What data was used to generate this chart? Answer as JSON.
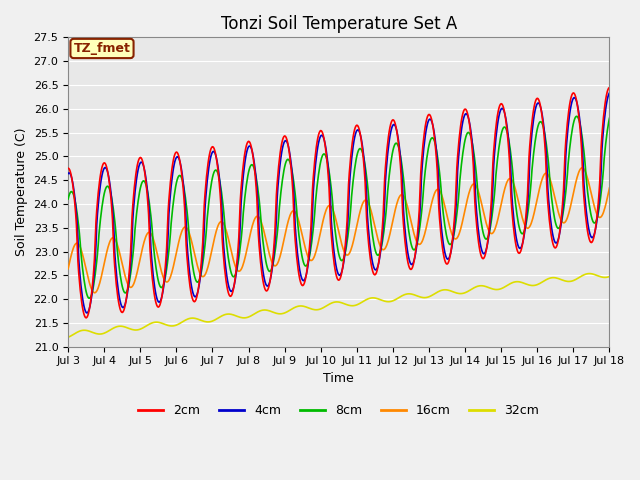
{
  "title": "Tonzi Soil Temperature Set A",
  "xlabel": "Time",
  "ylabel": "Soil Temperature (C)",
  "ylim": [
    21.0,
    27.5
  ],
  "yticks": [
    21.0,
    21.5,
    22.0,
    22.5,
    23.0,
    23.5,
    24.0,
    24.5,
    25.0,
    25.5,
    26.0,
    26.5,
    27.0,
    27.5
  ],
  "xtick_labels": [
    "Jul 3",
    "Jul 4",
    "Jul 5",
    "Jul 6",
    "Jul 7",
    "Jul 8",
    "Jul 9",
    "Jul 10",
    "Jul 11",
    "Jul 12",
    "Jul 13",
    "Jul 14",
    "Jul 15",
    "Jul 16",
    "Jul 17",
    "Jul 18"
  ],
  "colors": {
    "2cm": "#ff0000",
    "4cm": "#0000cc",
    "8cm": "#00bb00",
    "16cm": "#ff8800",
    "32cm": "#dddd00"
  },
  "annotation_text": "TZ_fmet",
  "annotation_facecolor": "#ffffbb",
  "annotation_edgecolor": "#882200",
  "background_color": "#e8e8e8",
  "plot_bg_color": "#f0f0f0",
  "grid_color": "#ffffff",
  "title_fontsize": 12,
  "axis_label_fontsize": 9,
  "tick_fontsize": 8
}
